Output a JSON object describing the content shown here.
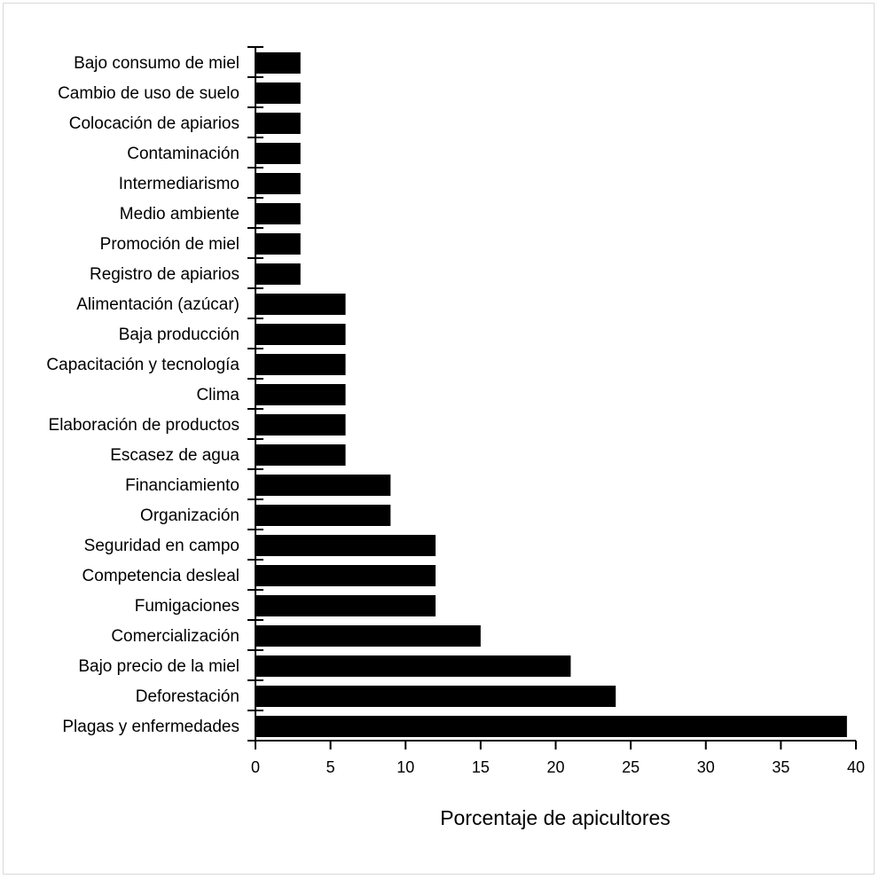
{
  "chart_data": {
    "type": "bar",
    "orientation": "horizontal",
    "xlabel": "Porcentaje de apicultores",
    "ylabel": "",
    "title": "",
    "xlim": [
      0,
      40
    ],
    "xticks": [
      0,
      5,
      10,
      15,
      20,
      25,
      30,
      35,
      40
    ],
    "grid": false,
    "bar_color": "#000000",
    "categories": [
      "Bajo consumo de miel",
      "Cambio de uso de suelo",
      "Colocación de apiarios",
      "Contaminación",
      "Intermediarismo",
      "Medio ambiente",
      "Promoción de miel",
      "Registro de apiarios",
      "Alimentación (azúcar)",
      "Baja producción",
      "Capacitación y tecnología",
      "Clima",
      "Elaboración de productos",
      "Escasez de agua",
      "Financiamiento",
      "Organización",
      "Seguridad en campo",
      "Competencia desleal",
      "Fumigaciones",
      "Comercialización",
      "Bajo precio de la miel",
      "Deforestación",
      "Plagas y enfermedades"
    ],
    "values": [
      3.0,
      3.0,
      3.0,
      3.0,
      3.0,
      3.0,
      3.0,
      3.0,
      6.0,
      6.0,
      6.0,
      6.0,
      6.0,
      6.0,
      9.0,
      9.0,
      12.0,
      12.0,
      12.0,
      15.0,
      21.0,
      24.0,
      39.4
    ]
  }
}
